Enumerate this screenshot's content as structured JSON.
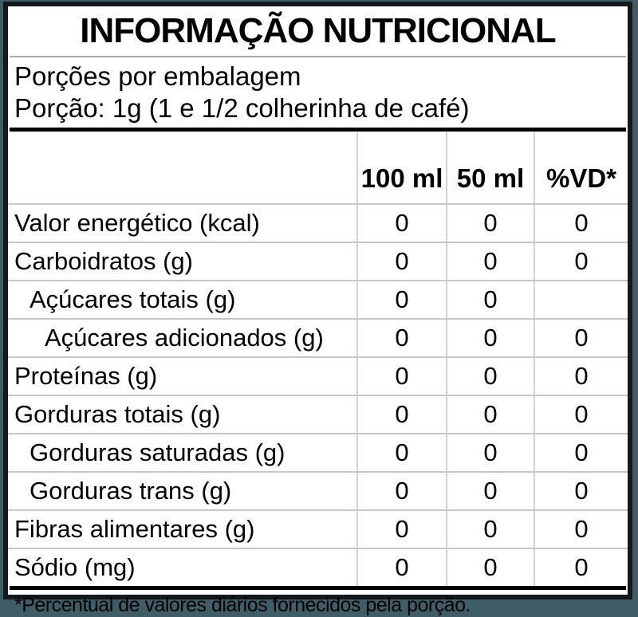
{
  "label": {
    "title": "INFORMAÇÃO NUTRICIONAL",
    "servings_line": "Porções por embalagem",
    "portion_line": "Porção: 1g (1 e 1/2 colherinha de café)",
    "footnote": "*Percentual de valores diários fornecidos pela porção."
  },
  "table": {
    "columns": [
      "",
      "100 ml",
      "50 ml",
      "%VD*"
    ],
    "rows": [
      {
        "name": "Valor energético (kcal)",
        "indent": 0,
        "v100": "0",
        "v50": "0",
        "vd": "0"
      },
      {
        "name": "Carboidratos (g)",
        "indent": 0,
        "v100": "0",
        "v50": "0",
        "vd": "0"
      },
      {
        "name": "Açúcares totais (g)",
        "indent": 1,
        "v100": "0",
        "v50": "0",
        "vd": ""
      },
      {
        "name": "Açúcares adicionados (g)",
        "indent": 2,
        "v100": "0",
        "v50": "0",
        "vd": "0"
      },
      {
        "name": "Proteínas (g)",
        "indent": 0,
        "v100": "0",
        "v50": "0",
        "vd": "0"
      },
      {
        "name": "Gorduras totais (g)",
        "indent": 0,
        "v100": "0",
        "v50": "0",
        "vd": "0"
      },
      {
        "name": "Gorduras saturadas (g)",
        "indent": 1,
        "v100": "0",
        "v50": "0",
        "vd": "0"
      },
      {
        "name": "Gorduras trans (g)",
        "indent": 1,
        "v100": "0",
        "v50": "0",
        "vd": "0"
      },
      {
        "name": "Fibras alimentares (g)",
        "indent": 0,
        "v100": "0",
        "v50": "0",
        "vd": "0"
      },
      {
        "name": "Sódio (mg)",
        "indent": 0,
        "v100": "0",
        "v50": "0",
        "vd": "0"
      }
    ]
  },
  "colors": {
    "page_background": "#3F5D67",
    "label_background": "#FFFFFF",
    "border": "#14191C",
    "text": "#000000",
    "row_divider": "#C5C5C5",
    "column_divider": "#D2D2D2",
    "title_divider": "#A9A9A9"
  }
}
